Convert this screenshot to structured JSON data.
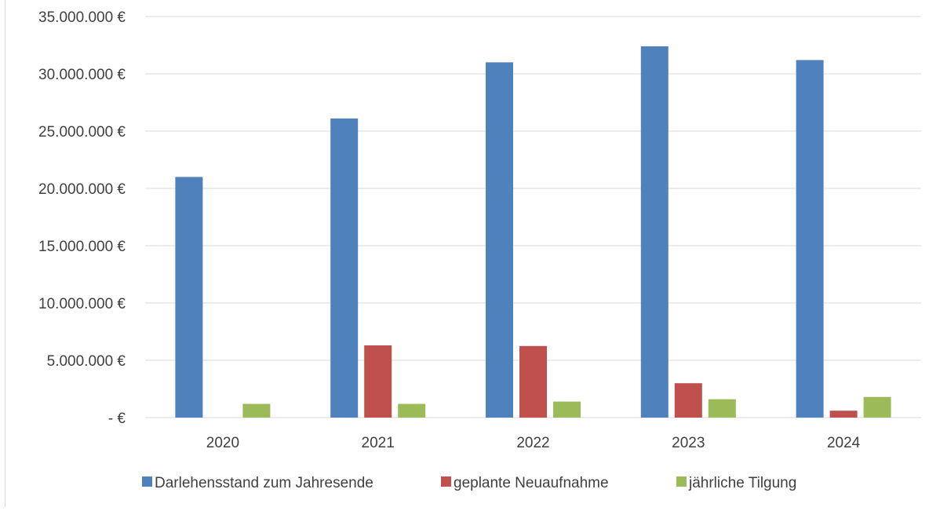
{
  "chart_data": {
    "type": "bar",
    "categories": [
      "2020",
      "2021",
      "2022",
      "2023",
      "2024"
    ],
    "series": [
      {
        "name": "Darlehensstand zum Jahresende",
        "color": "#4f81bd",
        "values": [
          21000000,
          26100000,
          31000000,
          32400000,
          31200000
        ]
      },
      {
        "name": "geplante Neuaufnahme",
        "color": "#c0504d",
        "values": [
          0,
          6300000,
          6250000,
          3000000,
          600000
        ]
      },
      {
        "name": "jährliche Tilgung",
        "color": "#9bbb59",
        "values": [
          1200000,
          1200000,
          1400000,
          1600000,
          1800000
        ]
      }
    ],
    "ylim": [
      0,
      35000000
    ],
    "yticks": [
      0,
      5000000,
      10000000,
      15000000,
      20000000,
      25000000,
      30000000,
      35000000
    ],
    "ytick_labels": [
      "-  €",
      "5.000.000 €",
      "10.000.000 €",
      "15.000.000 €",
      "20.000.000 €",
      "25.000.000 €",
      "30.000.000 €",
      "35.000.000 €"
    ],
    "title": "",
    "xlabel": "",
    "ylabel": "",
    "grid": true,
    "legend_position": "bottom",
    "gridline_color": "#d9d9d9"
  }
}
